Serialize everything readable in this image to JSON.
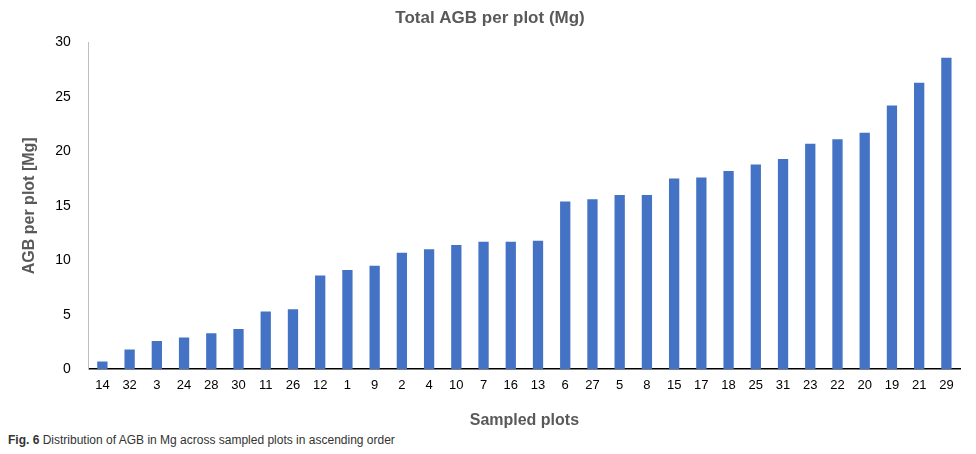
{
  "chart_data": {
    "type": "bar",
    "title": "Total AGB per plot (Mg)",
    "x_label": "Sampled plots",
    "y_label": "AGB per plot [Mg]",
    "caption": "Fig. 6 Distribution of AGB in Mg across sampled plots in ascending order",
    "categories": [
      "14",
      "32",
      "3",
      "24",
      "28",
      "30",
      "11",
      "26",
      "12",
      "1",
      "9",
      "2",
      "4",
      "10",
      "7",
      "16",
      "13",
      "6",
      "27",
      "5",
      "8",
      "15",
      "17",
      "18",
      "25",
      "31",
      "23",
      "22",
      "20",
      "19",
      "21",
      "29"
    ],
    "values": [
      0.7,
      1.8,
      2.6,
      2.9,
      3.3,
      3.7,
      5.3,
      5.5,
      8.6,
      9.1,
      9.5,
      10.7,
      11.0,
      11.4,
      11.7,
      11.7,
      11.8,
      15.4,
      15.6,
      16.0,
      16.0,
      17.5,
      17.6,
      18.2,
      18.8,
      19.3,
      20.7,
      21.1,
      21.7,
      24.2,
      26.3,
      28.6
    ],
    "color": "#4472c4",
    "ylim": [
      0,
      30
    ],
    "yticks": [
      0,
      5,
      10,
      15,
      20,
      25,
      30
    ],
    "grid": false
  }
}
